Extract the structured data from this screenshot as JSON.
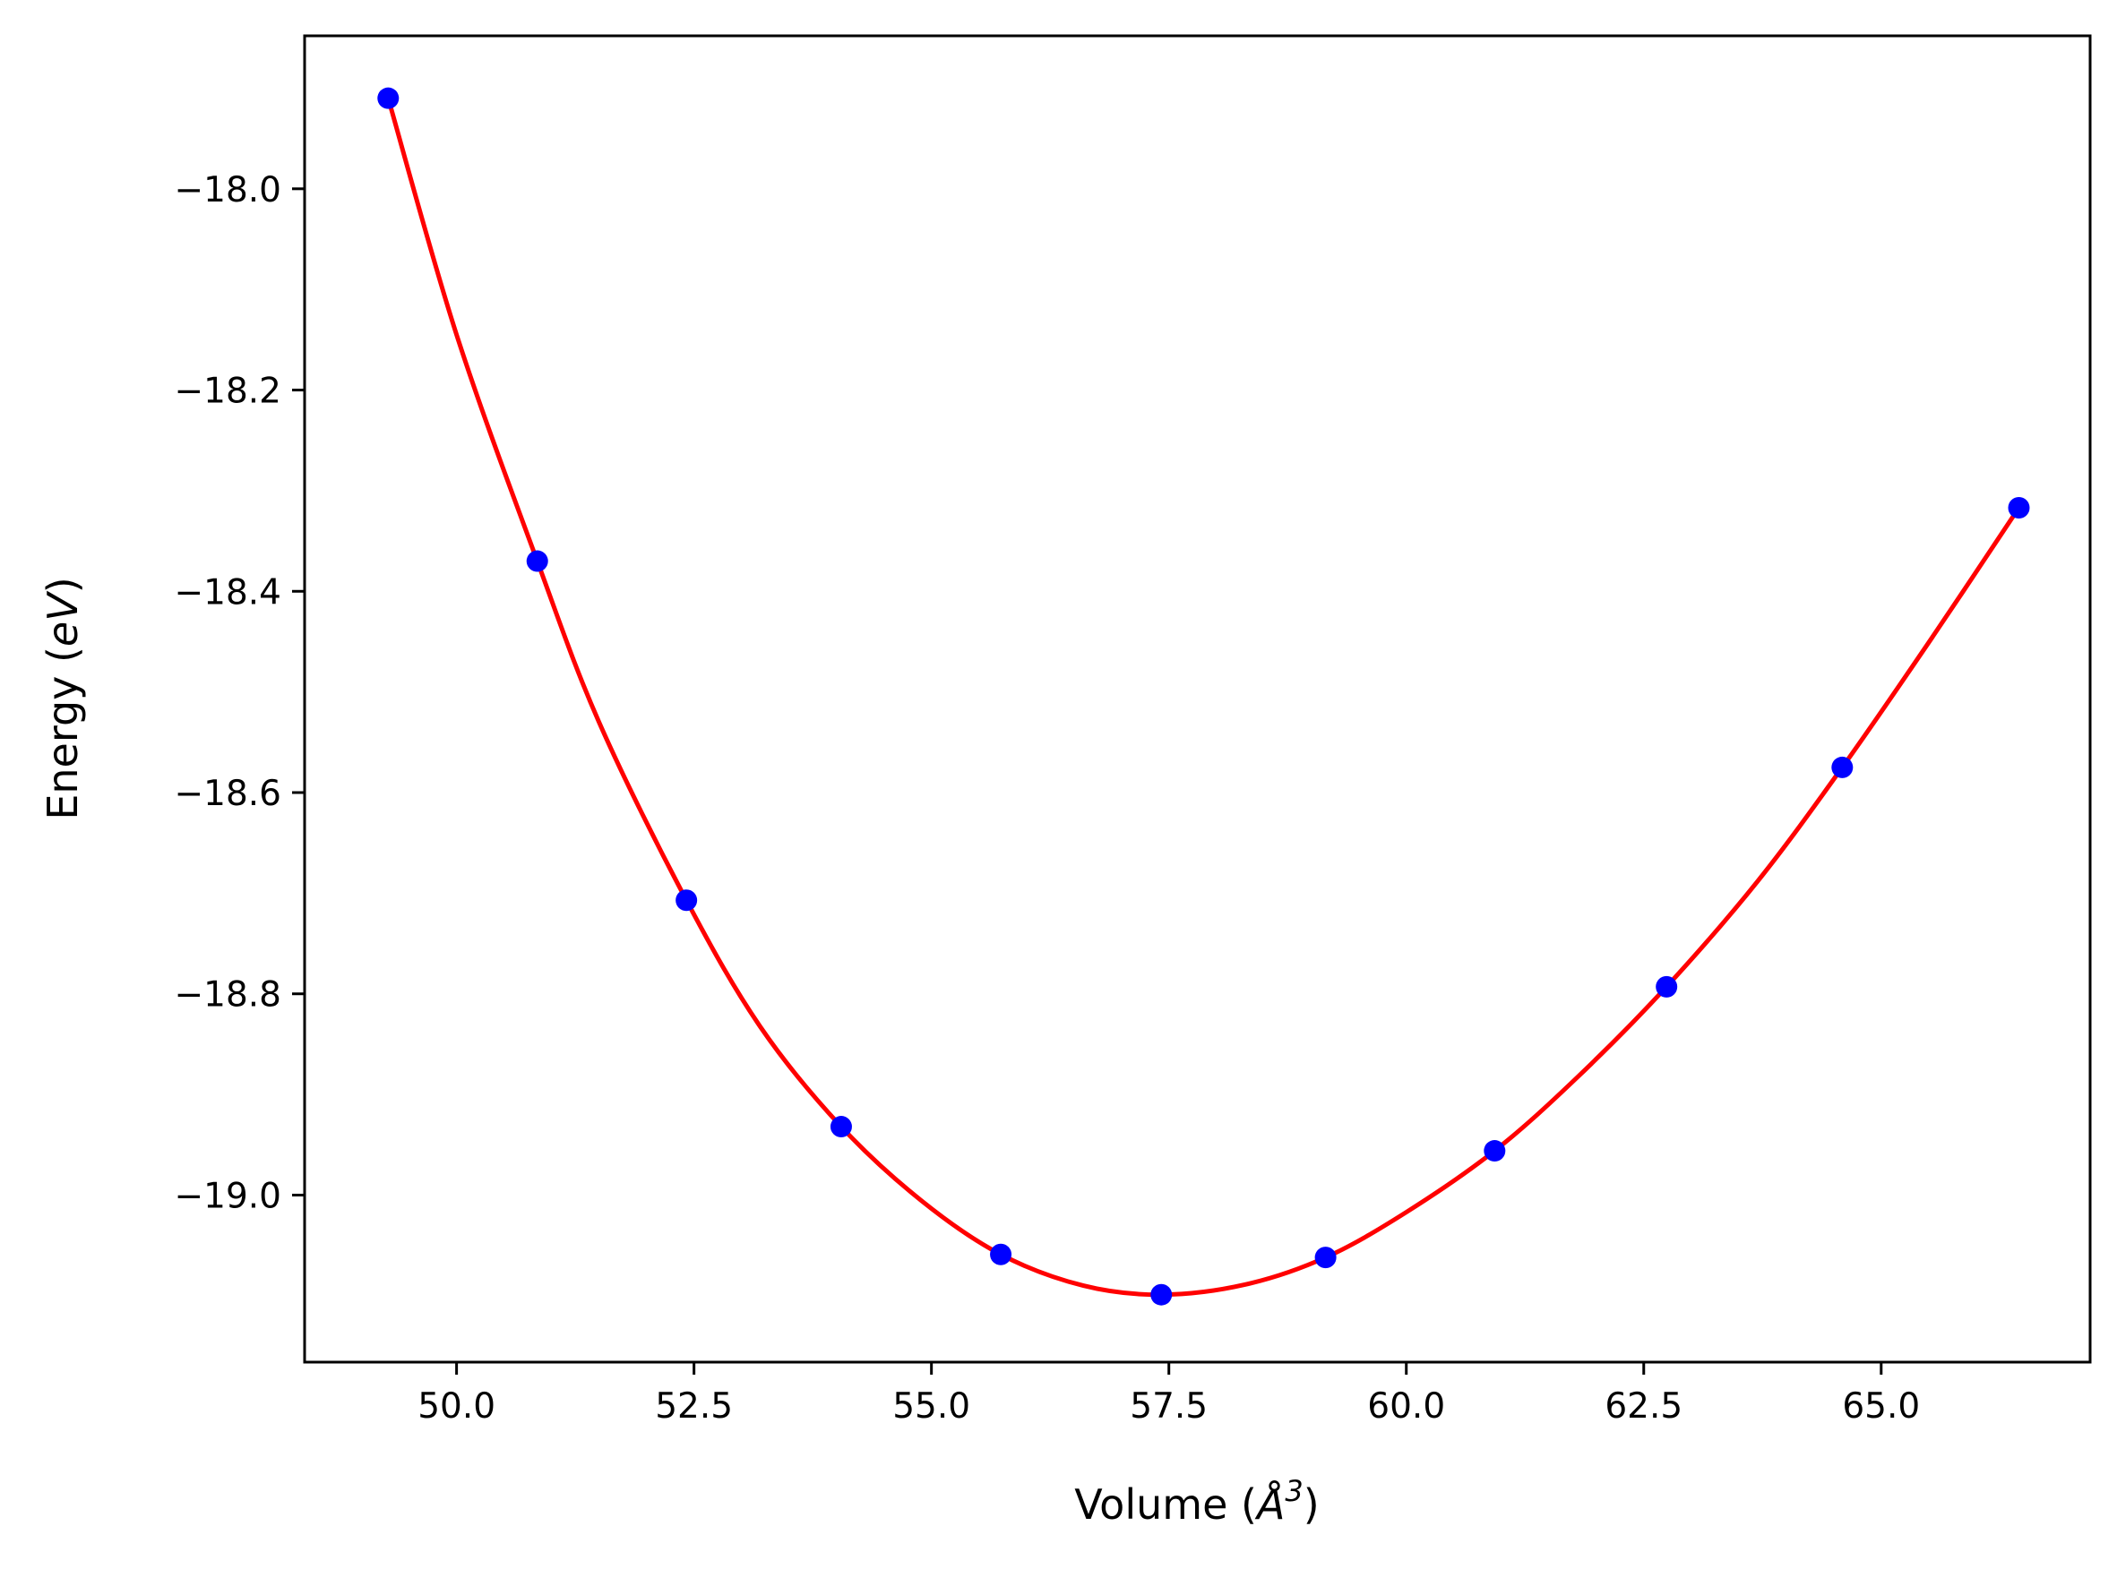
{
  "chart_data": {
    "type": "line",
    "title": "",
    "xlabel": "Volume (Å³)",
    "xlabel_parts": {
      "prefix": "Volume (",
      "symbol": "Å",
      "superscript": "3",
      "suffix": ")"
    },
    "ylabel": "Energy (eV)",
    "ylabel_parts": {
      "prefix": "Energy (",
      "unit": "eV",
      "suffix": ")"
    },
    "xlim": [
      48.4,
      67.2
    ],
    "ylim": [
      -19.166,
      -17.848
    ],
    "xticks": [
      50.0,
      52.5,
      55.0,
      57.5,
      60.0,
      62.5,
      65.0
    ],
    "xtick_labels": [
      "50.0",
      "52.5",
      "55.0",
      "57.5",
      "60.0",
      "62.5",
      "65.0"
    ],
    "yticks": [
      -18.0,
      -18.2,
      -18.4,
      -18.6,
      -18.8,
      -19.0
    ],
    "ytick_labels": [
      "−18.0",
      "−18.2",
      "−18.4",
      "−18.6",
      "−18.8",
      "−19.0"
    ],
    "grid": false,
    "legend": "none",
    "series": [
      {
        "kind": "points",
        "color": "#0000ff",
        "x": [
          49.28,
          50.85,
          52.42,
          54.05,
          55.73,
          57.42,
          59.15,
          60.93,
          62.74,
          64.59,
          66.45
        ],
        "y": [
          -17.91,
          -18.37,
          -18.707,
          -18.932,
          -19.059,
          -19.099,
          -19.062,
          -18.956,
          -18.793,
          -18.575,
          -18.317
        ]
      },
      {
        "kind": "fit-curve",
        "color": "#ff0000",
        "x": [
          49.28,
          50.0,
          50.85,
          51.5,
          52.42,
          53.2,
          54.05,
          54.9,
          55.73,
          56.6,
          57.42,
          58.3,
          59.15,
          60.0,
          60.93,
          61.8,
          62.74,
          63.7,
          64.59,
          65.5,
          66.45
        ],
        "y": [
          -17.91,
          -18.145,
          -18.37,
          -18.53,
          -18.707,
          -18.833,
          -18.932,
          -19.006,
          -19.059,
          -19.09,
          -19.099,
          -19.089,
          -19.062,
          -19.017,
          -18.956,
          -18.883,
          -18.793,
          -18.688,
          -18.575,
          -18.451,
          -18.317
        ]
      }
    ]
  }
}
